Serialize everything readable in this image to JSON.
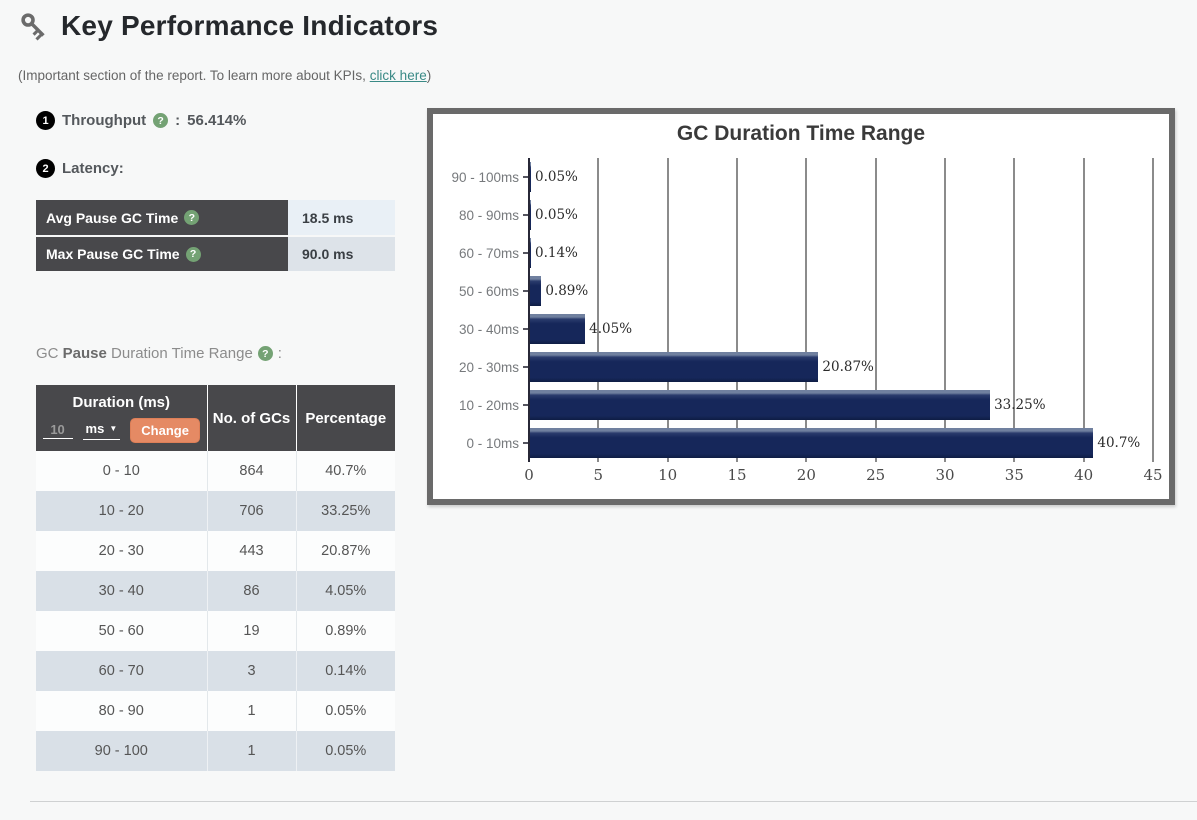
{
  "header": {
    "title": "Key Performance Indicators",
    "subtitle_prefix": "(Important section of the report. To learn more about KPIs, ",
    "subtitle_link": "click here",
    "subtitle_suffix": ")"
  },
  "icons": {
    "help_glyph": "?"
  },
  "kpis": {
    "throughput_badge": "1",
    "throughput_label": "Throughput",
    "throughput_separator": ":",
    "throughput_value": "56.414%",
    "latency_badge": "2",
    "latency_label": "Latency:"
  },
  "latency_table": {
    "rows": [
      {
        "label": "Avg Pause GC Time",
        "value": "18.5 ms"
      },
      {
        "label": "Max Pause GC Time",
        "value": "90.0 ms"
      }
    ]
  },
  "gc_pause_heading": {
    "prefix": "GC ",
    "bold": "Pause",
    "suffix": " Duration Time Range",
    "colon": ":"
  },
  "duration_table": {
    "col1_header": "Duration (ms)",
    "col2_header": "No. of GCs",
    "col3_header": "Percentage",
    "input_value": "10",
    "unit_selected": "ms",
    "dropdown_arrow": "▼",
    "change_label": "Change",
    "rows": [
      {
        "duration": "0 - 10",
        "gcs": "864",
        "pct": "40.7%"
      },
      {
        "duration": "10 - 20",
        "gcs": "706",
        "pct": "33.25%"
      },
      {
        "duration": "20 - 30",
        "gcs": "443",
        "pct": "20.87%"
      },
      {
        "duration": "30 - 40",
        "gcs": "86",
        "pct": "4.05%"
      },
      {
        "duration": "50 - 60",
        "gcs": "19",
        "pct": "0.89%"
      },
      {
        "duration": "60 - 70",
        "gcs": "3",
        "pct": "0.14%"
      },
      {
        "duration": "80 - 90",
        "gcs": "1",
        "pct": "0.05%"
      },
      {
        "duration": "90 - 100",
        "gcs": "1",
        "pct": "0.05%"
      }
    ]
  },
  "chart_data": {
    "type": "bar",
    "orientation": "horizontal",
    "title": "GC Duration Time Range",
    "categories": [
      "90 - 100ms",
      "80 - 90ms",
      "60 - 70ms",
      "50 - 60ms",
      "30 - 40ms",
      "20 - 30ms",
      "10 - 20ms",
      "0 - 10ms"
    ],
    "values": [
      0.05,
      0.05,
      0.14,
      0.89,
      4.05,
      20.87,
      33.25,
      40.7
    ],
    "value_labels": [
      "0.05%",
      "0.05%",
      "0.14%",
      "0.89%",
      "4.05%",
      "20.87%",
      "33.25%",
      "40.7%"
    ],
    "xlabel": "",
    "ylabel": "",
    "xlim": [
      0,
      45
    ],
    "x_ticks": [
      0,
      5,
      10,
      15,
      20,
      25,
      30,
      35,
      40,
      45
    ],
    "grid": true,
    "legend": false,
    "bar_color": "#16275a"
  },
  "colors": {
    "bar": "#16275a",
    "accent_button": "#e58a64",
    "help_icon": "#74a274",
    "link": "#3a8a86",
    "header_cell": "#48484b",
    "alt_row": "#d9e0e7",
    "chart_frame": "#6a6a6a"
  }
}
